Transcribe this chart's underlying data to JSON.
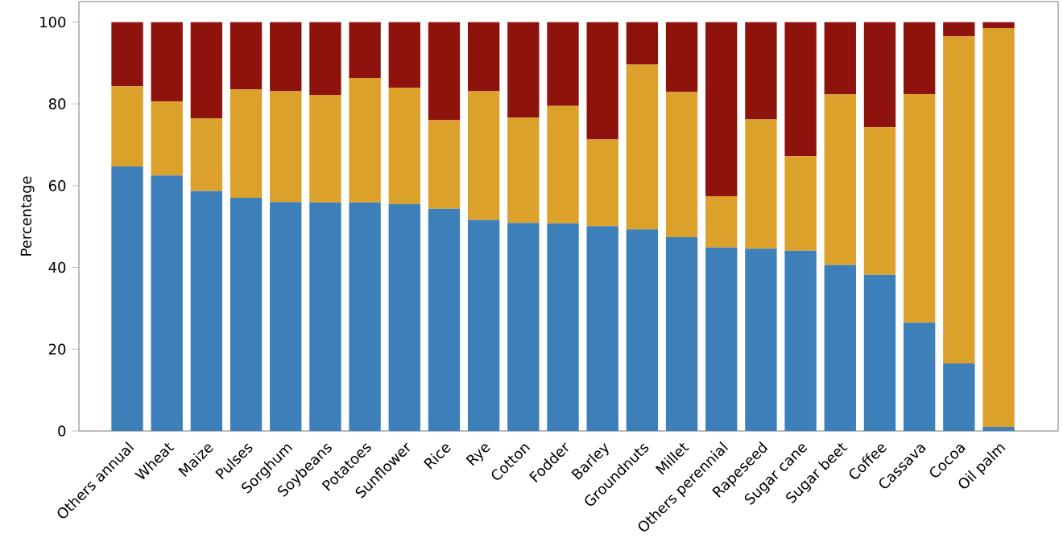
{
  "chart_data": {
    "type": "bar",
    "stacked": true,
    "ylabel": "Percentage",
    "ylim": [
      0,
      105
    ],
    "yticks": [
      0,
      20,
      40,
      60,
      80,
      100
    ],
    "categories": [
      "Others annual",
      "Wheat",
      "Maize",
      "Pulses",
      "Sorghum",
      "Soybeans",
      "Potatoes",
      "Sunflower",
      "Rice",
      "Rye",
      "Cotton",
      "Fodder",
      "Barley",
      "Groundnuts",
      "Millet",
      "Others perennial",
      "Rapeseed",
      "Sugar cane",
      "Sugar beet",
      "Coffee",
      "Cassava",
      "Cocoa",
      "Oil palm"
    ],
    "series": [
      {
        "color": "#3d7fb8",
        "values": [
          64.7,
          62.5,
          58.7,
          57.0,
          56.0,
          55.9,
          55.9,
          55.5,
          54.3,
          51.6,
          50.9,
          50.8,
          50.1,
          49.3,
          47.4,
          44.9,
          44.6,
          44.1,
          40.6,
          38.2,
          26.5,
          16.5,
          1.0
        ]
      },
      {
        "color": "#dba12a",
        "values": [
          19.6,
          18.1,
          17.7,
          26.5,
          27.1,
          26.3,
          30.4,
          28.4,
          21.7,
          31.5,
          25.7,
          28.7,
          21.2,
          40.3,
          35.5,
          12.5,
          31.6,
          23.1,
          41.7,
          36.1,
          55.9,
          80.0,
          97.5
        ]
      },
      {
        "color": "#8e130d",
        "values": [
          15.7,
          19.4,
          23.6,
          16.5,
          16.9,
          17.8,
          13.7,
          16.1,
          24.0,
          16.9,
          23.4,
          20.5,
          28.7,
          10.4,
          17.1,
          42.6,
          23.8,
          32.8,
          17.7,
          25.7,
          17.6,
          3.5,
          1.5
        ]
      }
    ]
  }
}
